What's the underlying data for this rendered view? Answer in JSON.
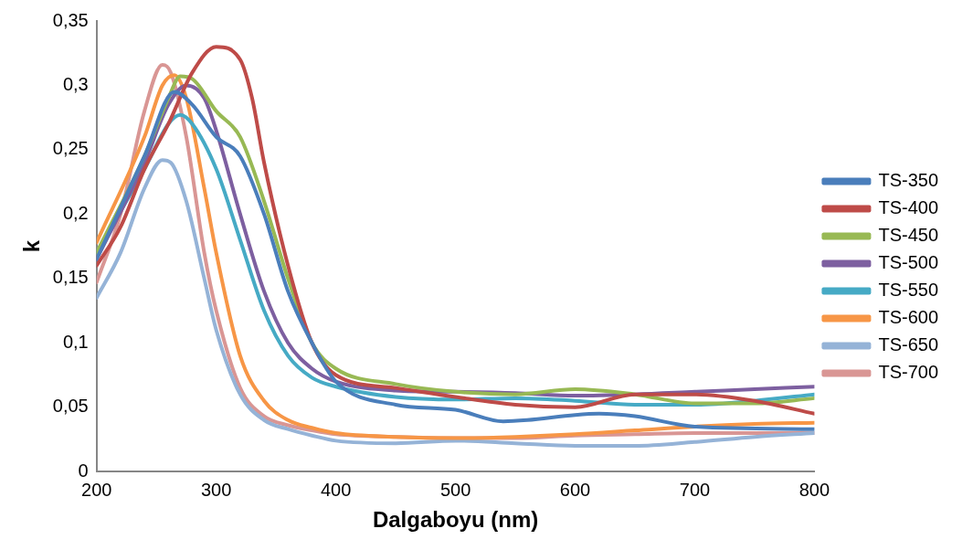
{
  "chart_data": {
    "type": "line",
    "xlabel": "Dalgaboyu (nm)",
    "ylabel": "k",
    "xlim": [
      200,
      800
    ],
    "xticks": [
      200,
      300,
      400,
      500,
      600,
      700,
      800
    ],
    "ylim": [
      0,
      0.35
    ],
    "yticks": [
      0,
      {
        "value": 0.05,
        "label": "0,05"
      },
      {
        "value": 0.1,
        "label": "0,1"
      },
      {
        "value": 0.15,
        "label": "0,15"
      },
      {
        "value": 0.2,
        "label": "0,2"
      },
      {
        "value": 0.25,
        "label": "0,25"
      },
      {
        "value": 0.3,
        "label": "0,3"
      },
      {
        "value": 0.35,
        "label": "0,35"
      }
    ],
    "grid": false,
    "legend": "right",
    "marker": "none",
    "line_style": "solid",
    "series": [
      {
        "name": "TS-350",
        "color": "#4a7ebb",
        "x": [
          200,
          240,
          265,
          280,
          300,
          320,
          340,
          360,
          380,
          400,
          450,
          500,
          540,
          560,
          600,
          620,
          650,
          700,
          800
        ],
        "values": [
          0.165,
          0.245,
          0.295,
          0.285,
          0.26,
          0.245,
          0.2,
          0.14,
          0.1,
          0.07,
          0.052,
          0.048,
          0.039,
          0.04,
          0.044,
          0.045,
          0.043,
          0.035,
          0.033
        ]
      },
      {
        "name": "TS-400",
        "color": "#be4b48",
        "x": [
          200,
          220,
          240,
          260,
          280,
          300,
          320,
          330,
          340,
          360,
          380,
          400,
          450,
          500,
          550,
          600,
          650,
          700,
          750,
          800
        ],
        "values": [
          0.16,
          0.19,
          0.235,
          0.27,
          0.31,
          0.33,
          0.32,
          0.29,
          0.24,
          0.16,
          0.1,
          0.075,
          0.065,
          0.058,
          0.052,
          0.05,
          0.06,
          0.06,
          0.055,
          0.045
        ]
      },
      {
        "name": "TS-450",
        "color": "#98b954",
        "x": [
          200,
          240,
          260,
          270,
          280,
          300,
          320,
          340,
          360,
          380,
          400,
          450,
          500,
          550,
          600,
          650,
          700,
          750,
          800
        ],
        "values": [
          0.17,
          0.245,
          0.29,
          0.307,
          0.305,
          0.28,
          0.26,
          0.21,
          0.15,
          0.1,
          0.08,
          0.068,
          0.062,
          0.06,
          0.064,
          0.06,
          0.053,
          0.053,
          0.057
        ]
      },
      {
        "name": "TS-500",
        "color": "#7d5fa0",
        "x": [
          200,
          240,
          260,
          275,
          290,
          300,
          320,
          340,
          360,
          380,
          400,
          450,
          500,
          550,
          600,
          650,
          700,
          750,
          800
        ],
        "values": [
          0.165,
          0.24,
          0.285,
          0.3,
          0.29,
          0.265,
          0.2,
          0.14,
          0.1,
          0.08,
          0.07,
          0.063,
          0.062,
          0.061,
          0.059,
          0.06,
          0.062,
          0.064,
          0.066
        ]
      },
      {
        "name": "TS-550",
        "color": "#46aac5",
        "x": [
          200,
          240,
          260,
          270,
          280,
          300,
          320,
          340,
          360,
          380,
          400,
          450,
          500,
          550,
          600,
          650,
          700,
          750,
          800
        ],
        "values": [
          0.17,
          0.235,
          0.27,
          0.277,
          0.27,
          0.235,
          0.18,
          0.125,
          0.09,
          0.073,
          0.066,
          0.058,
          0.056,
          0.057,
          0.055,
          0.052,
          0.052,
          0.055,
          0.06
        ]
      },
      {
        "name": "TS-600",
        "color": "#f79646",
        "x": [
          200,
          240,
          255,
          265,
          275,
          290,
          300,
          320,
          340,
          360,
          380,
          400,
          450,
          500,
          550,
          600,
          650,
          700,
          750,
          800
        ],
        "values": [
          0.178,
          0.26,
          0.3,
          0.308,
          0.29,
          0.22,
          0.17,
          0.09,
          0.055,
          0.04,
          0.034,
          0.03,
          0.027,
          0.026,
          0.027,
          0.029,
          0.032,
          0.035,
          0.037,
          0.038
        ]
      },
      {
        "name": "TS-650",
        "color": "#95b3d7",
        "x": [
          200,
          220,
          240,
          255,
          262,
          275,
          290,
          300,
          320,
          340,
          360,
          380,
          400,
          450,
          500,
          550,
          600,
          650,
          700,
          750,
          800
        ],
        "values": [
          0.135,
          0.17,
          0.22,
          0.242,
          0.24,
          0.21,
          0.15,
          0.11,
          0.06,
          0.04,
          0.033,
          0.028,
          0.024,
          0.022,
          0.024,
          0.022,
          0.02,
          0.02,
          0.023,
          0.027,
          0.03
        ]
      },
      {
        "name": "TS-700",
        "color": "#d99694",
        "x": [
          200,
          220,
          240,
          255,
          262,
          275,
          290,
          300,
          320,
          340,
          360,
          380,
          400,
          450,
          500,
          550,
          600,
          650,
          700,
          750,
          800
        ],
        "values": [
          0.147,
          0.2,
          0.28,
          0.316,
          0.31,
          0.26,
          0.17,
          0.125,
          0.065,
          0.043,
          0.036,
          0.032,
          0.029,
          0.027,
          0.026,
          0.026,
          0.028,
          0.029,
          0.03,
          0.03,
          0.03
        ]
      }
    ]
  }
}
